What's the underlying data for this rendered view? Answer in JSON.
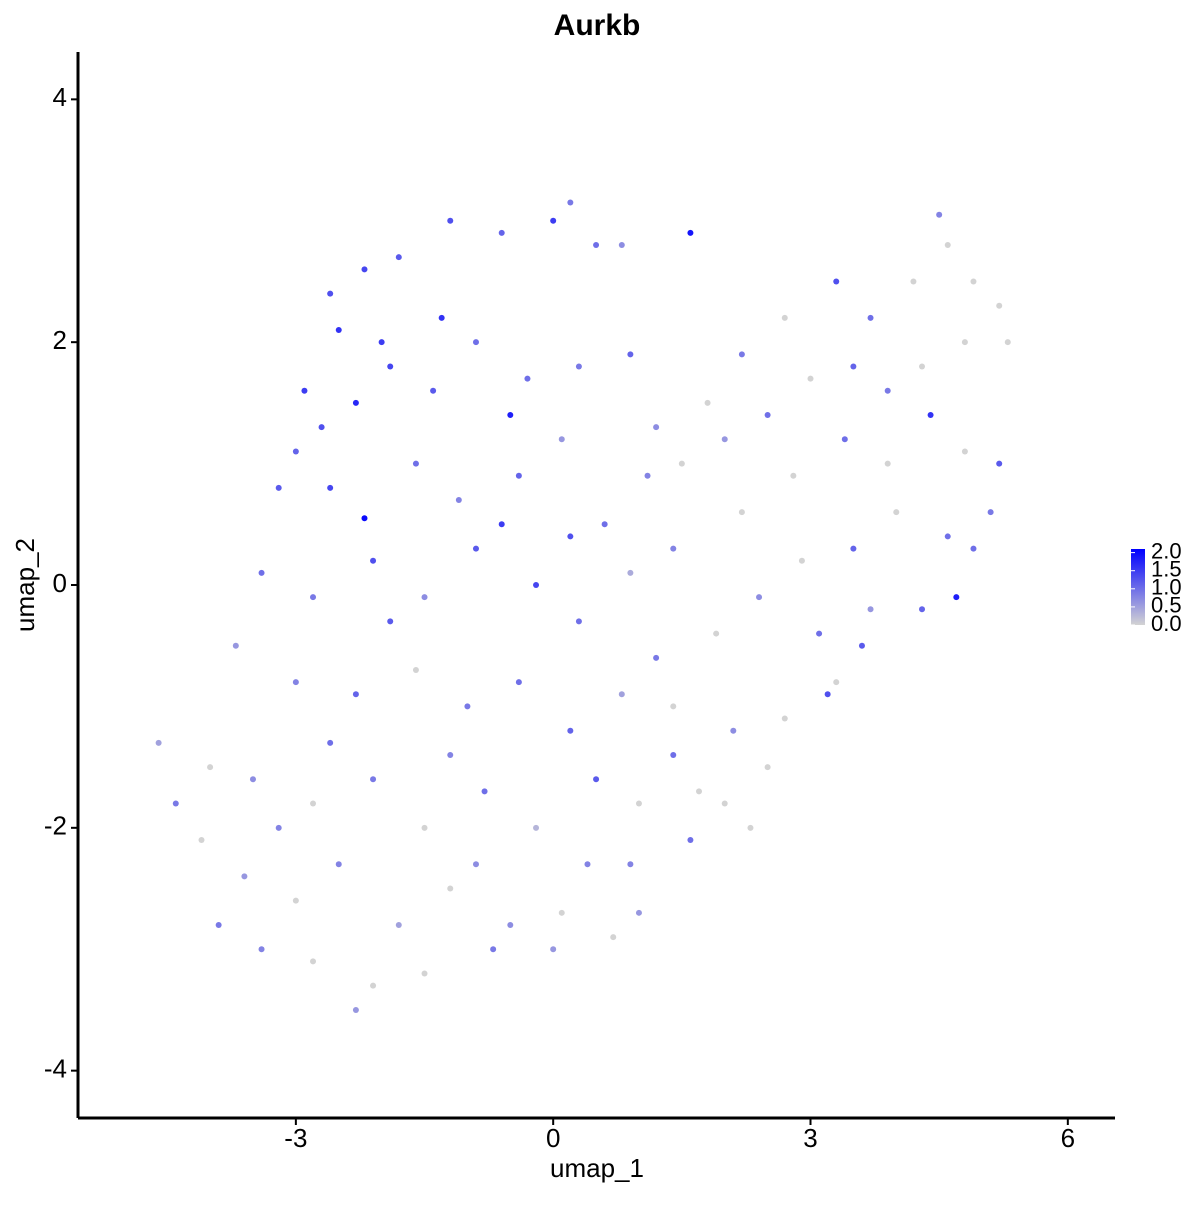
{
  "chart_data": {
    "type": "scatter",
    "title": "Aurkb",
    "x_label": "umap_1",
    "y_label": "umap_2",
    "xlim": [
      -5.54,
      6.55
    ],
    "ylim": [
      -4.39,
      4.39
    ],
    "xticks": [
      -3,
      0,
      3,
      6
    ],
    "yticks": [
      -4,
      -2,
      0,
      2,
      4
    ],
    "color_low": "#d3d3d3",
    "color_high": "#0000ff",
    "colorlim": [
      0,
      2.1
    ],
    "colorticks": [
      {
        "value": 0,
        "label": "0.0"
      },
      {
        "value": 0.5,
        "label": "0.5"
      },
      {
        "value": 1,
        "label": "1.0"
      },
      {
        "value": 1.5,
        "label": "1.5"
      },
      {
        "value": 2,
        "label": "2.0"
      }
    ],
    "x": [
      -2.5,
      -2.2,
      -1.8,
      -1.2,
      -0.6,
      0.0,
      0.2,
      0.5,
      0.8,
      1.6,
      -2.9,
      -2.7,
      -2.3,
      -1.9,
      -1.4,
      -0.9,
      -0.5,
      0.3,
      0.9,
      -3.2,
      -2.6,
      -2.2,
      -1.6,
      -1.1,
      -0.4,
      0.1,
      0.6,
      1.1,
      -3.4,
      -2.8,
      -2.1,
      -1.5,
      -0.9,
      -0.2,
      0.3,
      0.9,
      1.2,
      -3.7,
      -3.0,
      -2.3,
      -1.6,
      -1.0,
      -0.4,
      0.2,
      0.8,
      1.4,
      -4.6,
      -4.0,
      -3.5,
      -2.8,
      -2.1,
      -1.5,
      -0.8,
      -0.2,
      0.4,
      1.0,
      1.6,
      -4.1,
      -3.6,
      -3.0,
      -2.5,
      -1.8,
      -1.2,
      -0.5,
      0.1,
      0.7,
      1.0,
      -3.4,
      -2.8,
      -2.3,
      -1.5,
      -0.7,
      0.0,
      -2.1,
      -3.9,
      1.8,
      2.2,
      2.7,
      3.3,
      3.7,
      4.2,
      4.5,
      4.6,
      4.9,
      5.2,
      5.3,
      4.8,
      4.3,
      3.9,
      3.5,
      3.0,
      2.5,
      2.0,
      1.5,
      2.2,
      2.8,
      3.4,
      3.9,
      4.4,
      4.8,
      5.2,
      5.1,
      4.6,
      4.0,
      3.5,
      2.9,
      2.4,
      1.9,
      1.4,
      3.1,
      3.7,
      4.3,
      4.7,
      4.9,
      3.3,
      2.7,
      2.1,
      1.7,
      3.2,
      2.5,
      2.0,
      3.6,
      2.3,
      0.2,
      -0.6,
      -1.3,
      -2.0,
      -2.6,
      -3.0,
      -0.3,
      1.2,
      -1.9,
      -2.6,
      -1.2,
      0.5,
      -0.9,
      -3.2,
      -4.4,
      0.9,
      1.4
    ],
    "y": [
      2.1,
      2.6,
      2.7,
      3.0,
      2.9,
      3.0,
      3.15,
      2.8,
      2.8,
      2.9,
      1.6,
      1.3,
      1.5,
      1.8,
      1.6,
      2.0,
      1.4,
      1.8,
      1.9,
      0.8,
      0.8,
      0.55,
      1.0,
      0.7,
      0.9,
      1.2,
      0.5,
      0.9,
      0.1,
      -0.1,
      0.2,
      -0.1,
      0.3,
      0.0,
      -0.3,
      0.1,
      -0.6,
      -0.5,
      -0.8,
      -0.9,
      -0.7,
      -1.0,
      -0.8,
      -1.2,
      -0.9,
      -1.4,
      -1.3,
      -1.5,
      -1.6,
      -1.8,
      -1.6,
      -2.0,
      -1.7,
      -2.0,
      -2.3,
      -1.8,
      -2.1,
      -2.1,
      -2.4,
      -2.6,
      -2.3,
      -2.8,
      -2.5,
      -2.8,
      -2.7,
      -2.9,
      -2.7,
      -3.0,
      -3.1,
      -3.5,
      -3.2,
      -3.0,
      -3.0,
      -3.3,
      -2.8,
      1.5,
      1.9,
      2.2,
      2.5,
      2.2,
      2.5,
      3.05,
      2.8,
      2.5,
      2.3,
      2.0,
      2.0,
      1.8,
      1.6,
      1.8,
      1.7,
      1.4,
      1.2,
      1.0,
      0.6,
      0.9,
      1.2,
      1.0,
      1.4,
      1.1,
      1.0,
      0.6,
      0.4,
      0.6,
      0.3,
      0.2,
      -0.1,
      -0.4,
      0.3,
      -0.4,
      -0.2,
      -0.2,
      -0.1,
      0.3,
      -0.8,
      -1.1,
      -1.2,
      -1.7,
      -0.9,
      -1.5,
      -1.8,
      -0.5,
      -2.0,
      0.4,
      0.5,
      2.2,
      2.0,
      2.4,
      1.1,
      1.7,
      1.3,
      -0.3,
      -1.3,
      -1.4,
      -1.6,
      -2.3,
      -2.0,
      -1.8,
      -2.3,
      -1.0
    ],
    "expression": [
      1.6,
      1.4,
      1.2,
      1.3,
      1.1,
      1.5,
      0.9,
      1.0,
      0.7,
      1.9,
      1.5,
      1.3,
      1.7,
      1.4,
      1.2,
      1.0,
      1.8,
      0.9,
      1.1,
      1.2,
      1.4,
      2.0,
      1.0,
      0.8,
      1.1,
      0.6,
      1.0,
      0.8,
      1.0,
      0.9,
      1.3,
      0.7,
      1.2,
      1.4,
      1.0,
      0.4,
      0.9,
      0.6,
      0.8,
      1.1,
      0.0,
      0.9,
      1.0,
      1.1,
      0.5,
      1.0,
      0.5,
      0.0,
      0.7,
      0.0,
      0.9,
      0.0,
      1.0,
      0.3,
      0.8,
      0.0,
      1.0,
      0.0,
      0.6,
      0.0,
      0.8,
      0.5,
      0.0,
      0.7,
      0.0,
      0.0,
      0.6,
      0.8,
      0.0,
      0.6,
      0.0,
      0.9,
      0.6,
      0.0,
      0.9,
      0.0,
      0.9,
      0.0,
      1.3,
      1.0,
      0.0,
      0.8,
      0.0,
      0.0,
      0.0,
      0.0,
      0.0,
      0.0,
      0.9,
      1.1,
      0.0,
      1.0,
      0.6,
      0.0,
      0.0,
      0.0,
      1.0,
      0.0,
      1.6,
      0.0,
      1.2,
      0.9,
      1.0,
      0.0,
      1.1,
      0.0,
      0.7,
      0.0,
      0.8,
      1.0,
      0.6,
      1.1,
      1.8,
      1.0,
      0.0,
      0.0,
      0.7,
      0.0,
      1.3,
      0.0,
      0.0,
      1.2,
      0.0,
      1.3,
      1.5,
      1.6,
      1.5,
      1.3,
      1.1,
      1.0,
      0.7,
      1.2,
      1.0,
      0.8,
      1.2,
      0.7,
      0.8,
      0.9,
      0.8,
      0.0
    ]
  }
}
